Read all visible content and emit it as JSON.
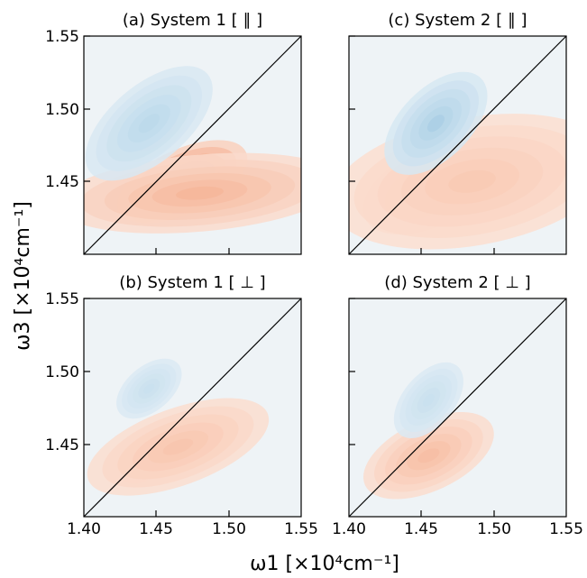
{
  "chart_data": [
    {
      "type": "heatmap",
      "title": "(a) System 1 [ ∥ ]",
      "xlim": [
        1.4,
        1.55
      ],
      "ylim": [
        1.4,
        1.55
      ],
      "diagonal": true,
      "colormap": "RdBu_r",
      "features": [
        {
          "x": 1.453,
          "y": 1.443,
          "value": 1.0,
          "sx": 0.012,
          "sy": 0.0065,
          "rot": 45
        },
        {
          "x": 1.468,
          "y": 1.45,
          "value": 0.45,
          "sx": 0.022,
          "sy": 0.01,
          "rot": 25
        },
        {
          "x": 1.48,
          "y": 1.442,
          "value": 0.18,
          "sx": 0.045,
          "sy": 0.012,
          "rot": 5
        },
        {
          "x": 1.448,
          "y": 1.485,
          "value": -0.55,
          "sx": 0.013,
          "sy": 0.007,
          "rot": 40
        },
        {
          "x": 1.445,
          "y": 1.49,
          "value": -0.2,
          "sx": 0.024,
          "sy": 0.012,
          "rot": 40
        }
      ]
    },
    {
      "type": "heatmap",
      "title": "(b) System 1 [ ⊥ ]",
      "xlim": [
        1.4,
        1.55
      ],
      "ylim": [
        1.4,
        1.55
      ],
      "diagonal": true,
      "colormap": "RdBu_r",
      "features": [
        {
          "x": 1.445,
          "y": 1.442,
          "value": 0.28,
          "sx": 0.011,
          "sy": 0.006,
          "rot": 45
        },
        {
          "x": 1.465,
          "y": 1.448,
          "value": 0.12,
          "sx": 0.03,
          "sy": 0.012,
          "rot": 20
        },
        {
          "x": 1.445,
          "y": 1.488,
          "value": -0.12,
          "sx": 0.012,
          "sy": 0.007,
          "rot": 40
        }
      ]
    },
    {
      "type": "heatmap",
      "title": "(c) System 2 [ ∥ ]",
      "xlim": [
        1.4,
        1.55
      ],
      "ylim": [
        1.4,
        1.55
      ],
      "diagonal": true,
      "colormap": "RdBu_r",
      "features": [
        {
          "x": 1.438,
          "y": 1.435,
          "value": 0.55,
          "sx": 0.011,
          "sy": 0.006,
          "rot": 40
        },
        {
          "x": 1.455,
          "y": 1.445,
          "value": 0.3,
          "sx": 0.022,
          "sy": 0.012,
          "rot": 25
        },
        {
          "x": 1.485,
          "y": 1.45,
          "value": 0.1,
          "sx": 0.045,
          "sy": 0.02,
          "rot": 10
        },
        {
          "x": 1.46,
          "y": 1.49,
          "value": -0.28,
          "sx": 0.02,
          "sy": 0.011,
          "rot": 45
        }
      ]
    },
    {
      "type": "heatmap",
      "title": "(d) System 2 [ ⊥ ]",
      "xlim": [
        1.4,
        1.55
      ],
      "ylim": [
        1.4,
        1.55
      ],
      "diagonal": true,
      "colormap": "RdBu_r",
      "features": [
        {
          "x": 1.439,
          "y": 1.435,
          "value": 0.3,
          "sx": 0.009,
          "sy": 0.005,
          "rot": 40
        },
        {
          "x": 1.455,
          "y": 1.442,
          "value": 0.15,
          "sx": 0.022,
          "sy": 0.011,
          "rot": 25
        },
        {
          "x": 1.455,
          "y": 1.48,
          "value": -0.12,
          "sx": 0.014,
          "sy": 0.008,
          "rot": 50
        }
      ]
    }
  ],
  "axes": {
    "x_ticks": [
      "1.40",
      "1.45",
      "1.50",
      "1.55"
    ],
    "y_ticks": [
      "1.55",
      "1.50",
      "1.45"
    ],
    "xlabel": "ω1 [×10⁴cm⁻¹]",
    "ylabel": "ω3 [×10⁴cm⁻¹]"
  },
  "colors": {
    "positive": "#b2182b",
    "negative": "#2166ac",
    "background": "#eef3f6",
    "diagonal": "#000000"
  }
}
